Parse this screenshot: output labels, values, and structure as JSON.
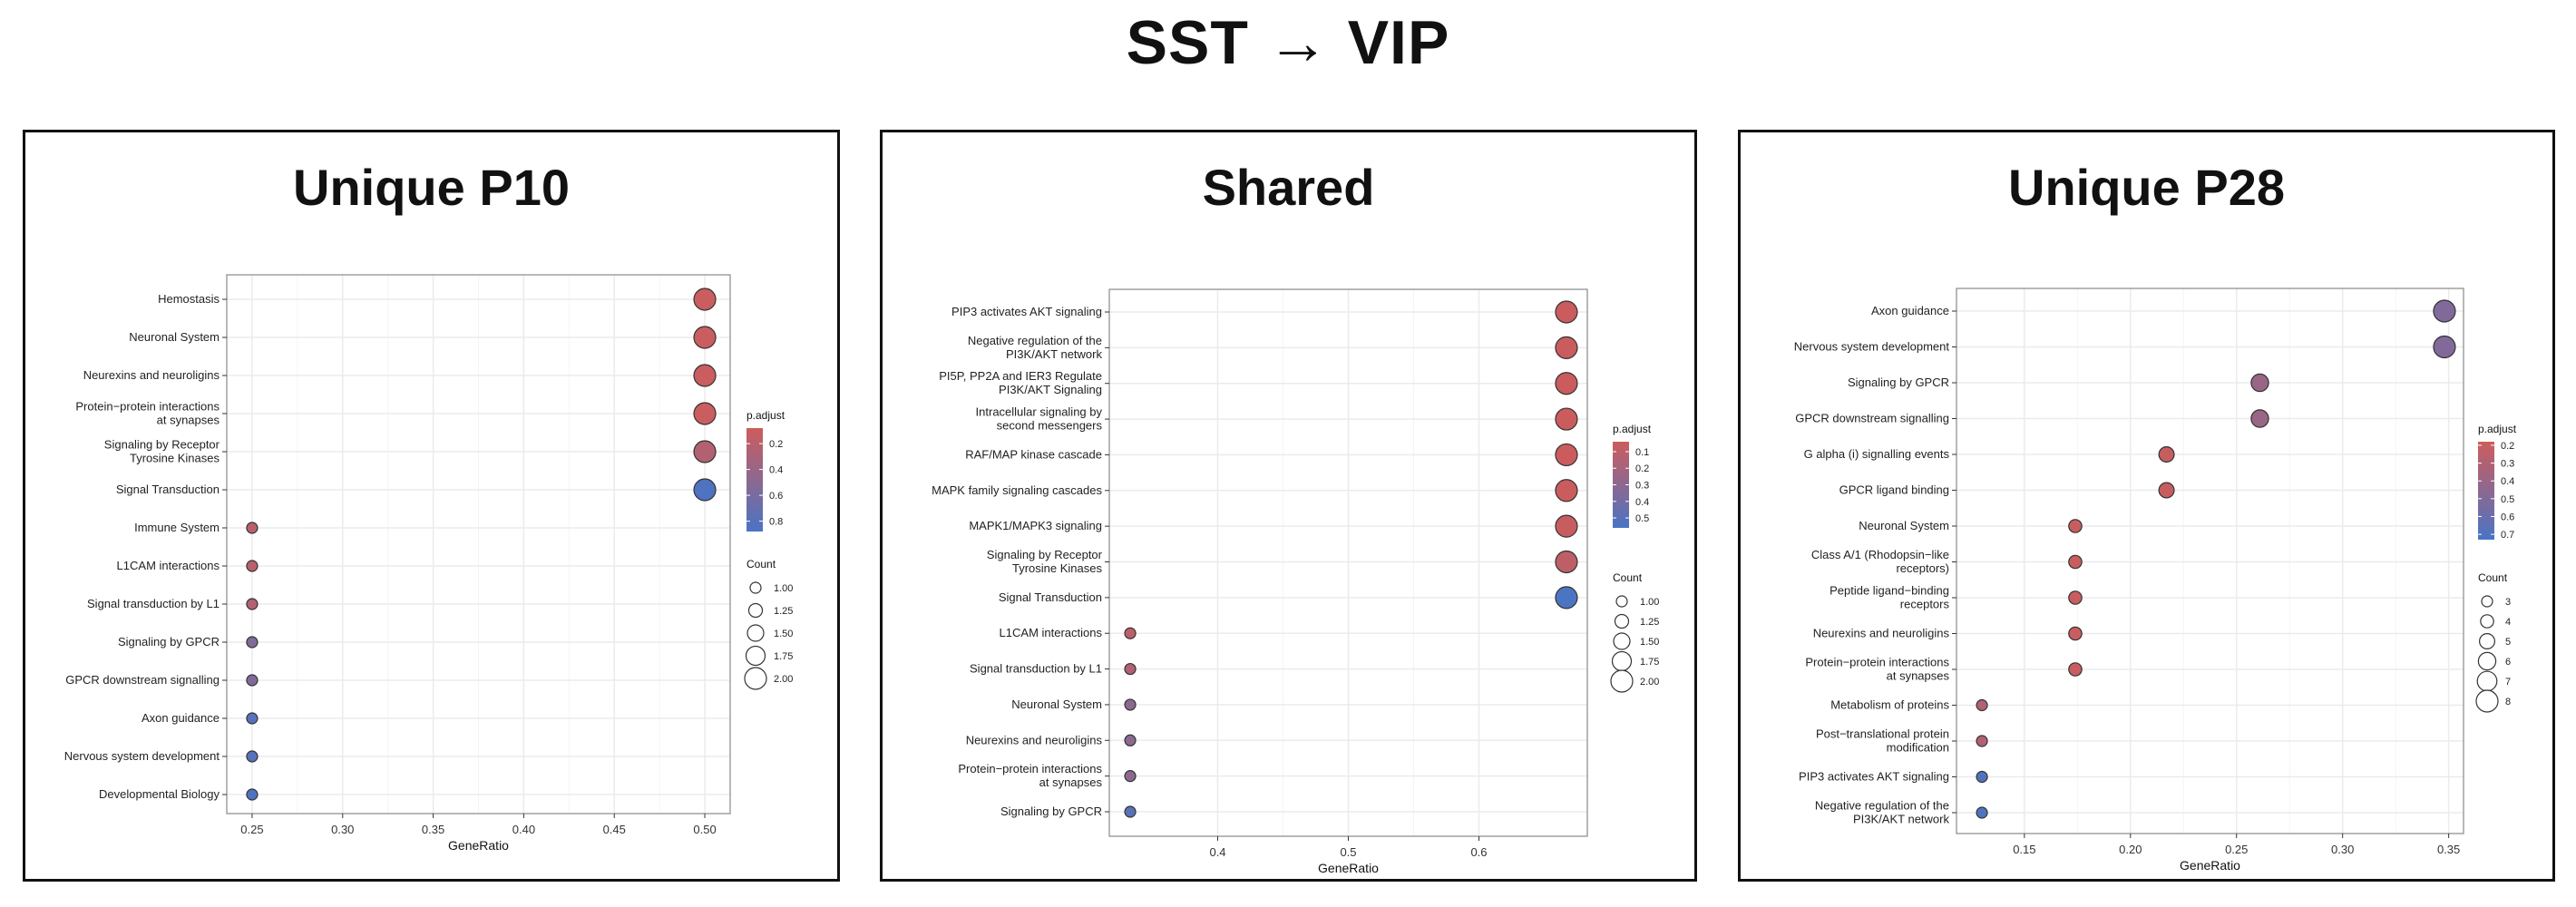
{
  "title": "SST →  VIP",
  "colors": {
    "low": "#cd5c5c",
    "high": "#4a74c4",
    "grid": "#ebebeb",
    "frame": "#888888"
  },
  "chart_data": [
    {
      "type": "scatter",
      "title": "Unique P10",
      "xlabel": "GeneRatio",
      "xlim": [
        0.236,
        0.514
      ],
      "xticks": [
        0.25,
        0.3,
        0.35,
        0.4,
        0.45,
        0.5
      ],
      "xtick_labels": [
        "0.25",
        "0.30",
        "0.35",
        "0.40",
        "0.45",
        "0.50"
      ],
      "categories": [
        "Hemostasis",
        "Neuronal System",
        "Neurexins and neuroligins",
        "Protein−protein interactions\nat synapses",
        "Signaling by Receptor\nTyrosine Kinases",
        "Signal Transduction",
        "Immune System",
        "L1CAM interactions",
        "Signal transduction by L1",
        "Signaling by GPCR",
        "GPCR downstream signalling",
        "Axon guidance",
        "Nervous system development",
        "Developmental Biology"
      ],
      "gene_ratio": [
        0.5,
        0.5,
        0.5,
        0.5,
        0.5,
        0.5,
        0.25,
        0.25,
        0.25,
        0.25,
        0.25,
        0.25,
        0.25,
        0.25
      ],
      "p_adjust": [
        0.1,
        0.1,
        0.1,
        0.1,
        0.25,
        0.85,
        0.2,
        0.2,
        0.25,
        0.55,
        0.55,
        0.8,
        0.8,
        0.85
      ],
      "count": [
        2,
        2,
        2,
        2,
        2,
        2,
        1,
        1,
        1,
        1,
        1,
        1,
        1,
        1
      ],
      "legend_color": {
        "title": "p.adjust",
        "ticks": [
          0.2,
          0.4,
          0.6,
          0.8
        ],
        "range": [
          0.08,
          0.88
        ]
      },
      "legend_size": {
        "title": "Count",
        "values": [
          1.0,
          1.25,
          1.5,
          1.75,
          2.0
        ],
        "labels": [
          "1.00",
          "1.25",
          "1.50",
          "1.75",
          "2.00"
        ]
      },
      "size_range": [
        1,
        2
      ],
      "legend": "right"
    },
    {
      "type": "scatter",
      "title": "Shared",
      "xlabel": "GeneRatio",
      "xlim": [
        0.317,
        0.683
      ],
      "xticks": [
        0.4,
        0.5,
        0.6
      ],
      "xtick_labels": [
        "0.4",
        "0.5",
        "0.6"
      ],
      "categories": [
        "PIP3 activates AKT signaling",
        "Negative regulation of the\nPI3K/AKT network",
        "PI5P, PP2A and IER3 Regulate\nPI3K/AKT Signaling",
        "Intracellular signaling by\nsecond messengers",
        "RAF/MAP kinase cascade",
        "MAPK family signaling cascades",
        "MAPK1/MAPK3 signaling",
        "Signaling by Receptor\nTyrosine Kinases",
        "Signal Transduction",
        "L1CAM interactions",
        "Signal transduction by L1",
        "Neuronal System",
        "Neurexins and neuroligins",
        "Protein−protein interactions\nat synapses",
        "Signaling by GPCR"
      ],
      "gene_ratio": [
        0.667,
        0.667,
        0.667,
        0.667,
        0.667,
        0.667,
        0.667,
        0.667,
        0.667,
        0.333,
        0.333,
        0.333,
        0.333,
        0.333,
        0.333
      ],
      "p_adjust": [
        0.05,
        0.05,
        0.05,
        0.05,
        0.05,
        0.05,
        0.06,
        0.1,
        0.55,
        0.1,
        0.15,
        0.3,
        0.3,
        0.3,
        0.5
      ],
      "count": [
        2,
        2,
        2,
        2,
        2,
        2,
        2,
        2,
        2,
        1,
        1,
        1,
        1,
        1,
        1
      ],
      "legend_color": {
        "title": "p.adjust",
        "ticks": [
          0.1,
          0.2,
          0.3,
          0.4,
          0.5
        ],
        "range": [
          0.04,
          0.56
        ]
      },
      "legend_size": {
        "title": "Count",
        "values": [
          1.0,
          1.25,
          1.5,
          1.75,
          2.0
        ],
        "labels": [
          "1.00",
          "1.25",
          "1.50",
          "1.75",
          "2.00"
        ]
      },
      "size_range": [
        1,
        2
      ],
      "legend": "right"
    },
    {
      "type": "scatter",
      "title": "Unique P28",
      "xlabel": "GeneRatio",
      "xlim": [
        0.118,
        0.357
      ],
      "xticks": [
        0.15,
        0.2,
        0.25,
        0.3,
        0.35
      ],
      "xtick_labels": [
        "0.15",
        "0.20",
        "0.25",
        "0.30",
        "0.35"
      ],
      "categories": [
        "Axon guidance",
        "Nervous system development",
        "Signaling by GPCR",
        "GPCR downstream signalling",
        "G alpha (i) signalling events",
        "GPCR ligand binding",
        "Neuronal System",
        "Class A/1 (Rhodopsin−like\nreceptors)",
        "Peptide ligand−binding\nreceptors",
        "Neurexins and neuroligins",
        "Protein−protein interactions\nat synapses",
        "Metabolism of proteins",
        "Post−translational protein\nmodification",
        "PIP3 activates AKT signaling",
        "Negative regulation of the\nPI3K/AKT network"
      ],
      "gene_ratio": [
        0.348,
        0.348,
        0.261,
        0.261,
        0.217,
        0.217,
        0.174,
        0.174,
        0.174,
        0.174,
        0.174,
        0.13,
        0.13,
        0.13,
        0.13
      ],
      "p_adjust": [
        0.5,
        0.5,
        0.4,
        0.4,
        0.2,
        0.2,
        0.2,
        0.2,
        0.2,
        0.2,
        0.2,
        0.3,
        0.3,
        0.7,
        0.7
      ],
      "count": [
        8,
        8,
        6,
        6,
        5,
        5,
        4,
        4,
        4,
        4,
        4,
        3,
        3,
        3,
        3
      ],
      "legend_color": {
        "title": "p.adjust",
        "ticks": [
          0.2,
          0.3,
          0.4,
          0.5,
          0.6,
          0.7
        ],
        "range": [
          0.18,
          0.73
        ]
      },
      "legend_size": {
        "title": "Count",
        "values": [
          3,
          4,
          5,
          6,
          7,
          8
        ],
        "labels": [
          "3",
          "4",
          "5",
          "6",
          "7",
          "8"
        ]
      },
      "size_range": [
        3,
        8
      ],
      "legend": "right"
    }
  ]
}
